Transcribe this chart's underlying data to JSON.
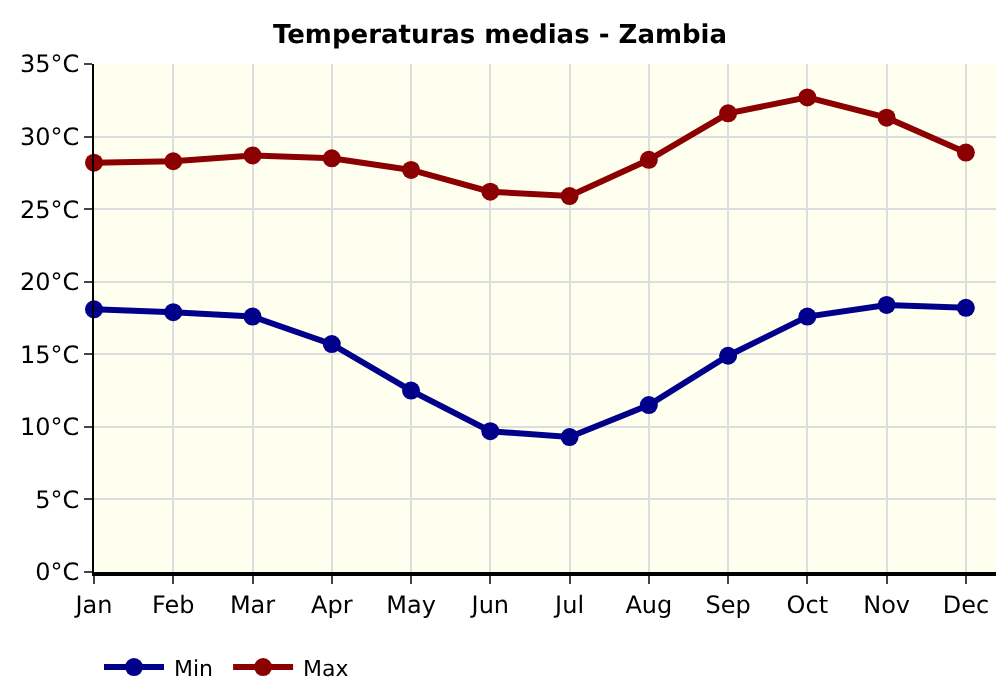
{
  "chart_data": {
    "type": "line",
    "title": "Temperaturas medias - Zambia",
    "categories": [
      "Jan",
      "Feb",
      "Mar",
      "Apr",
      "May",
      "Jun",
      "Jul",
      "Aug",
      "Sep",
      "Oct",
      "Nov",
      "Dec"
    ],
    "series": [
      {
        "name": "Min",
        "color": "#00008b",
        "values": [
          18.1,
          17.9,
          17.6,
          15.7,
          12.5,
          9.7,
          9.3,
          11.5,
          14.9,
          17.6,
          18.4,
          18.2
        ]
      },
      {
        "name": "Max",
        "color": "#8b0000",
        "values": [
          28.2,
          28.3,
          28.7,
          28.5,
          27.7,
          26.2,
          25.9,
          28.4,
          31.6,
          32.7,
          31.3,
          28.9
        ]
      }
    ],
    "ylim": [
      0,
      35
    ],
    "yticks": [
      {
        "value": 0,
        "label": "0°C"
      },
      {
        "value": 5,
        "label": "5°C"
      },
      {
        "value": 10,
        "label": "10°C"
      },
      {
        "value": 15,
        "label": "15°C"
      },
      {
        "value": 20,
        "label": "20°C"
      },
      {
        "value": 25,
        "label": "25°C"
      },
      {
        "value": 30,
        "label": "30°C"
      },
      {
        "value": 35,
        "label": "35°C"
      }
    ],
    "grid": true,
    "legend": "bottom left",
    "marker": "circle",
    "line_style": "solid"
  }
}
